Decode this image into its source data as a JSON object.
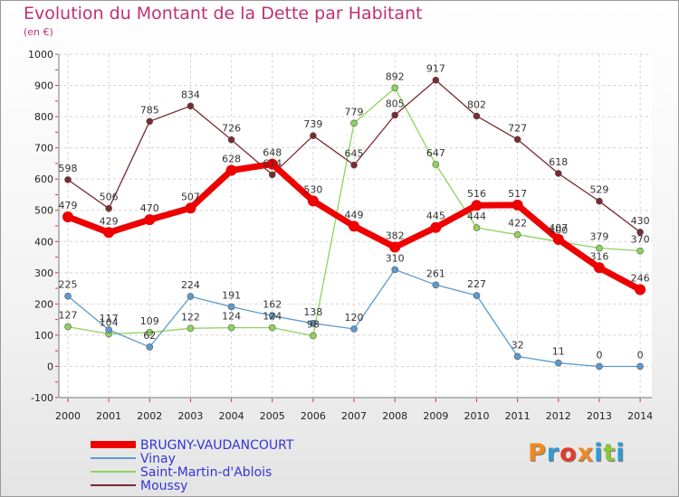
{
  "title": "Evolution du Montant de la Dette par Habitant",
  "subtitle": "(en €)",
  "logo": {
    "text": "Proxiti",
    "colors": [
      "#f08a1e",
      "#2e9bd6",
      "#e53b2c",
      "#f08a1e",
      "#2e9bd6",
      "#8cc63e",
      "#2e9bd6"
    ]
  },
  "chart_data": {
    "type": "line",
    "x": [
      "2000",
      "2001",
      "2002",
      "2003",
      "2004",
      "2005",
      "2006",
      "2007",
      "2008",
      "2009",
      "2010",
      "2011",
      "2012",
      "2013",
      "2014"
    ],
    "ylim": [
      -100,
      1000
    ],
    "yticks": [
      "-100",
      "0",
      "100",
      "200",
      "300",
      "400",
      "500",
      "600",
      "700",
      "800",
      "900",
      "1000"
    ],
    "grid": true,
    "legend_position": "bottom-left",
    "series": [
      {
        "name": "Saint-Martin-d'Ablois",
        "color": "#8cd45a",
        "values": [
          127,
          104,
          109,
          122,
          124,
          124,
          98,
          779,
          892,
          647,
          444,
          422,
          400,
          379,
          370
        ],
        "labels": [
          "127",
          "104",
          "109",
          "122",
          "124",
          "124",
          "98",
          "779",
          "892",
          "647",
          "444",
          "422",
          "400",
          "379",
          "370"
        ]
      },
      {
        "name": "Vinay",
        "color": "#5b9bd0",
        "values": [
          225,
          117,
          62,
          224,
          191,
          162,
          138,
          120,
          310,
          261,
          227,
          32,
          11,
          0,
          0
        ],
        "labels": [
          "225",
          "117",
          "62",
          "224",
          "191",
          "162",
          "138",
          "120",
          "310",
          "261",
          "227",
          "32",
          "11",
          "0",
          "0"
        ]
      },
      {
        "name": "Moussy",
        "color": "#7a2a30",
        "values": [
          598,
          506,
          785,
          834,
          726,
          614,
          739,
          645,
          805,
          917,
          802,
          727,
          618,
          529,
          430
        ],
        "labels": [
          "598",
          "506",
          "785",
          "834",
          "726",
          "614",
          "739",
          "645",
          "805",
          "917",
          "802",
          "727",
          "618",
          "529",
          "430"
        ]
      },
      {
        "name": "BRUGNY-VAUDANCOURT",
        "color": "#ee0000",
        "values": [
          479,
          429,
          470,
          507,
          628,
          648,
          530,
          449,
          382,
          445,
          516,
          517,
          407,
          316,
          246
        ],
        "labels": [
          "479",
          "429",
          "470",
          "507",
          "628",
          "648",
          "530",
          "449",
          "382",
          "445",
          "516",
          "517",
          "407",
          "316",
          "246"
        ]
      }
    ],
    "legend": [
      {
        "name": "BRUGNY-VAUDANCOURT",
        "color": "#ee0000"
      },
      {
        "name": "Vinay",
        "color": "#5b9bd0"
      },
      {
        "name": "Saint-Martin-d'Ablois",
        "color": "#8cd45a"
      },
      {
        "name": "Moussy",
        "color": "#7a2a30"
      }
    ]
  }
}
